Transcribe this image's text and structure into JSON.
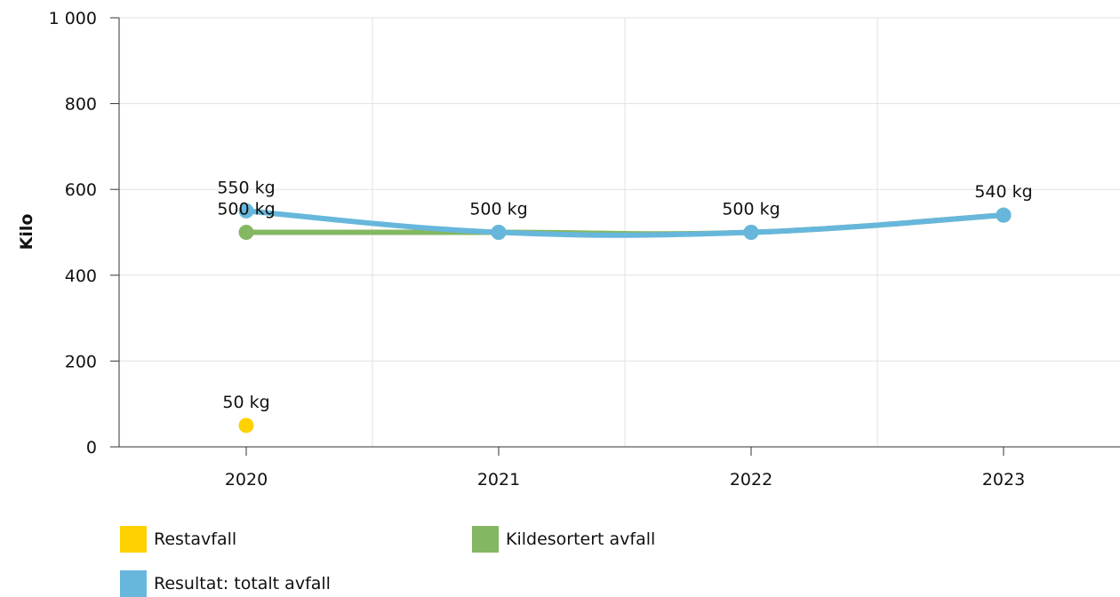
{
  "chart_data": {
    "type": "line",
    "ylabel": "Kilo",
    "xlabel": "",
    "title": "",
    "x": [
      "2020",
      "2021",
      "2022",
      "2023"
    ],
    "ylim": [
      0,
      1000
    ],
    "yticks": [
      0,
      200,
      400,
      600,
      800,
      1000
    ],
    "ytick_labels": [
      "0",
      "200",
      "400",
      "600",
      "800",
      "1 000"
    ],
    "grid": true,
    "legend_position": "bottom",
    "series": [
      {
        "name": "Restavfall",
        "color": "#FFD100",
        "values": [
          50,
          null,
          null,
          null
        ],
        "labels": [
          "50 kg",
          null,
          null,
          null
        ]
      },
      {
        "name": "Kildesortert avfall",
        "color": "#84B761",
        "values": [
          500,
          500,
          500,
          540
        ],
        "labels": [
          "500 kg",
          null,
          null,
          null
        ]
      },
      {
        "name": "Resultat: totalt avfall",
        "color": "#67B7DC",
        "values": [
          550,
          500,
          500,
          540
        ],
        "labels": [
          "550 kg",
          "500 kg",
          "500 kg",
          "540 kg"
        ]
      }
    ]
  }
}
